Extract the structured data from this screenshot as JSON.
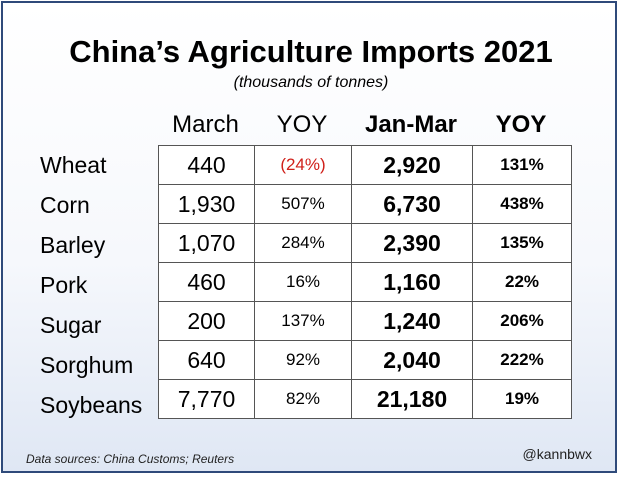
{
  "chart_data": {
    "type": "table",
    "title": "China’s Agriculture Imports 2021",
    "subtitle": "(thousands of tonnes)",
    "columns": [
      "March",
      "YOY",
      "Jan-Mar",
      "YOY"
    ],
    "rows": [
      {
        "label": "Wheat",
        "march": "440",
        "march_yoy": "(24%)",
        "jan_mar": "2,920",
        "jan_mar_yoy": "131%",
        "march_yoy_negative": true
      },
      {
        "label": "Corn",
        "march": "1,930",
        "march_yoy": "507%",
        "jan_mar": "6,730",
        "jan_mar_yoy": "438%"
      },
      {
        "label": "Barley",
        "march": "1,070",
        "march_yoy": "284%",
        "jan_mar": "2,390",
        "jan_mar_yoy": "135%"
      },
      {
        "label": "Pork",
        "march": "460",
        "march_yoy": "16%",
        "jan_mar": "1,160",
        "jan_mar_yoy": "22%"
      },
      {
        "label": "Sugar",
        "march": "200",
        "march_yoy": "137%",
        "jan_mar": "1,240",
        "jan_mar_yoy": "206%"
      },
      {
        "label": "Sorghum",
        "march": "640",
        "march_yoy": "92%",
        "jan_mar": "2,040",
        "jan_mar_yoy": "222%"
      },
      {
        "label": "Soybeans",
        "march": "7,770",
        "march_yoy": "82%",
        "jan_mar": "21,180",
        "jan_mar_yoy": "19%"
      }
    ],
    "negative_color": "#d0201a"
  },
  "footer": {
    "source": "Data sources: China Customs; Reuters",
    "handle": "@kannbwx"
  },
  "colors": {
    "frame_border": "#2f4a7a",
    "background_bottom": "#dfe7f4"
  }
}
